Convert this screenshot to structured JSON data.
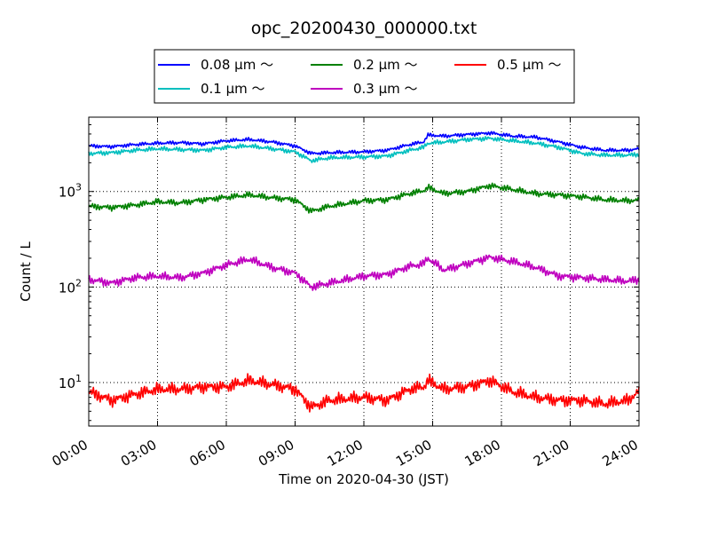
{
  "chart_data": {
    "type": "line",
    "title": "opc_20200430_000000.txt",
    "xlabel": "Time on 2020-04-30 (JST)",
    "ylabel": "Count / L",
    "x_unit": "hours (JST)",
    "xlim": [
      0,
      24
    ],
    "ylim": [
      3.5,
      6000
    ],
    "yscale": "log",
    "grid": true,
    "legend_position": "top-center",
    "legend_columns": 3,
    "x_ticks": [
      {
        "value": 0,
        "label": "00:00"
      },
      {
        "value": 3,
        "label": "03:00"
      },
      {
        "value": 6,
        "label": "06:00"
      },
      {
        "value": 9,
        "label": "09:00"
      },
      {
        "value": 12,
        "label": "12:00"
      },
      {
        "value": 15,
        "label": "15:00"
      },
      {
        "value": 18,
        "label": "18:00"
      },
      {
        "value": 21,
        "label": "21:00"
      },
      {
        "value": 24,
        "label": "24:00"
      }
    ],
    "y_ticks": [
      {
        "value": 10,
        "base": "10",
        "exp": "1"
      },
      {
        "value": 100,
        "base": "10",
        "exp": "2"
      },
      {
        "value": 1000,
        "base": "10",
        "exp": "3"
      }
    ],
    "x": [
      0,
      1,
      2,
      3,
      4,
      5,
      6,
      7,
      8,
      9,
      9.7,
      10.5,
      12,
      13,
      14,
      14.6,
      14.8,
      15.5,
      16.5,
      17.5,
      18.5,
      19.5,
      20.5,
      21.5,
      22.5,
      23.5,
      24
    ],
    "series": [
      {
        "name": "0.08 μm ～",
        "color": "#0000ff",
        "values": [
          3000,
          2950,
          3100,
          3200,
          3250,
          3150,
          3400,
          3500,
          3300,
          3000,
          2500,
          2550,
          2600,
          2700,
          3100,
          3300,
          3900,
          3800,
          3950,
          4100,
          3800,
          3700,
          3300,
          2900,
          2700,
          2700,
          2800
        ]
      },
      {
        "name": "0.1 μm ～",
        "color": "#00bfbf",
        "values": [
          2500,
          2550,
          2700,
          2800,
          2750,
          2700,
          2900,
          3000,
          2800,
          2600,
          2100,
          2250,
          2300,
          2350,
          2700,
          2900,
          3200,
          3300,
          3500,
          3600,
          3400,
          3200,
          2900,
          2500,
          2400,
          2400,
          2450
        ]
      },
      {
        "name": "0.2 μm ～",
        "color": "#008000",
        "values": [
          700,
          680,
          720,
          780,
          760,
          820,
          870,
          920,
          860,
          820,
          620,
          700,
          800,
          820,
          950,
          1020,
          1100,
          950,
          1000,
          1150,
          1050,
          950,
          920,
          880,
          820,
          800,
          810
        ]
      },
      {
        "name": "0.3 μm ～",
        "color": "#bf00bf",
        "values": [
          120,
          110,
          125,
          130,
          125,
          140,
          170,
          195,
          160,
          140,
          100,
          110,
          130,
          135,
          165,
          175,
          200,
          150,
          175,
          205,
          185,
          160,
          130,
          125,
          120,
          115,
          120
        ]
      },
      {
        "name": "0.5 μm ～",
        "color": "#ff0000",
        "values": [
          8,
          6.5,
          7.5,
          8.5,
          8.5,
          9,
          9,
          10.5,
          9.5,
          8.5,
          5.5,
          6.5,
          7,
          6.5,
          8.5,
          9,
          10.5,
          8.5,
          9,
          10.5,
          8,
          7,
          6.5,
          6.5,
          6,
          6.5,
          8
        ]
      }
    ]
  }
}
